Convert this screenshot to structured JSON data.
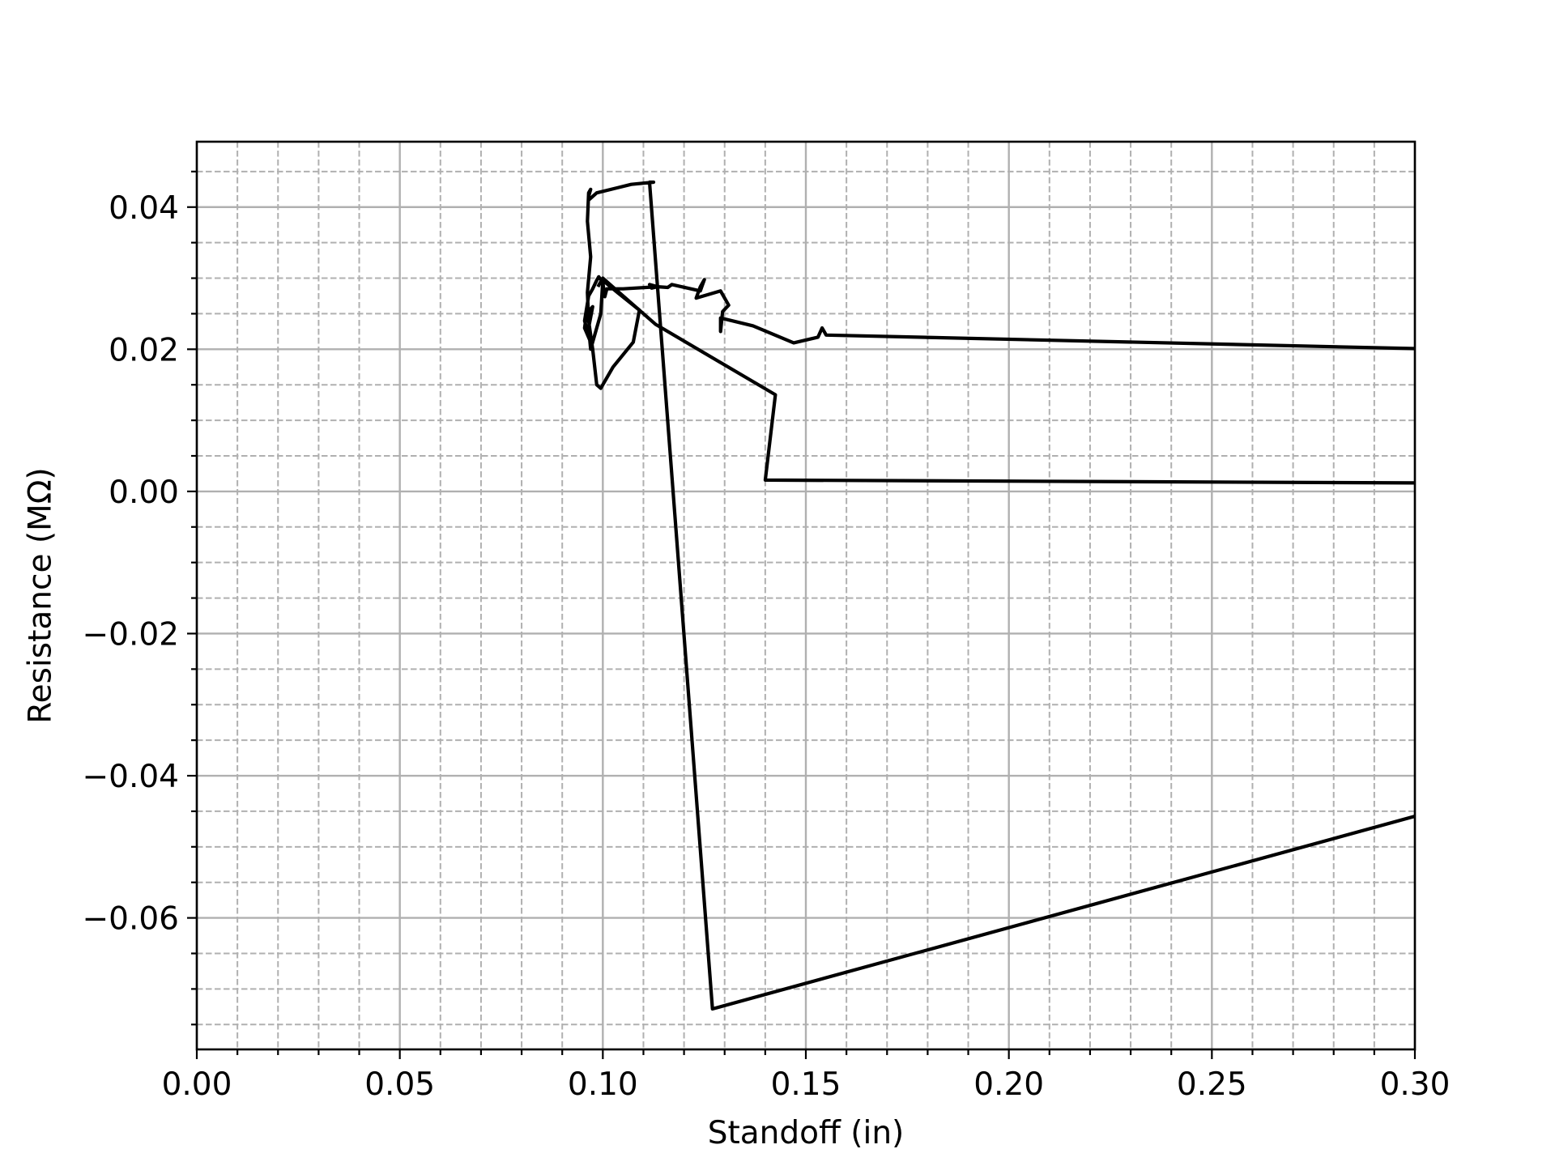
{
  "chart_data": {
    "type": "line",
    "title": "",
    "xlabel": "Standoff (in)",
    "ylabel": "Resistance (MΩ)",
    "xlim": [
      0.0,
      0.3
    ],
    "ylim": [
      -0.0785,
      0.0492
    ],
    "grid": "major solid, minor dashed",
    "x_major_ticks": [
      0.0,
      0.05,
      0.1,
      0.15,
      0.2,
      0.25,
      0.3
    ],
    "x_tick_labels": [
      "0.00",
      "0.05",
      "0.10",
      "0.15",
      "0.20",
      "0.25",
      "0.30"
    ],
    "x_minor_ticks": [
      0.01,
      0.02,
      0.03,
      0.04,
      0.06,
      0.07,
      0.08,
      0.09,
      0.11,
      0.12,
      0.13,
      0.14,
      0.16,
      0.17,
      0.18,
      0.19,
      0.21,
      0.22,
      0.23,
      0.24,
      0.26,
      0.27,
      0.28,
      0.29
    ],
    "y_major_ticks": [
      0.04,
      0.02,
      0.0,
      -0.02,
      -0.04,
      -0.06
    ],
    "y_tick_labels": [
      "0.04",
      "0.02",
      "0.00",
      "−0.02",
      "−0.04",
      "−0.06"
    ],
    "y_minor_ticks": [
      0.045,
      0.035,
      0.03,
      0.025,
      0.015,
      0.01,
      0.005,
      -0.005,
      -0.01,
      -0.015,
      -0.025,
      -0.03,
      -0.035,
      -0.045,
      -0.05,
      -0.055,
      -0.065,
      -0.07,
      -0.075
    ],
    "series": [
      {
        "color": "#000000",
        "x": [
          0.3,
          0.155,
          0.154,
          0.153,
          0.147,
          0.137,
          0.129,
          0.129,
          0.1295,
          0.131,
          0.129,
          0.123,
          0.124,
          0.125,
          0.124,
          0.117,
          0.116,
          0.1135,
          0.112,
          0.1115,
          0.1135,
          0.105,
          0.101,
          0.1005,
          0.1,
          0.099,
          0.0985,
          0.0975,
          0.0965,
          0.0955,
          0.097,
          0.0955,
          0.096,
          0.0975,
          0.0965,
          0.097,
          0.0995,
          0.1,
          0.104,
          0.109,
          0.1075,
          0.1025,
          0.1,
          0.0995,
          0.0985,
          0.0975,
          0.0965,
          0.0962,
          0.097,
          0.0962,
          0.0965,
          0.097,
          0.0965,
          0.0965,
          0.0985,
          0.107,
          0.1125,
          0.1115,
          0.127,
          0.3
        ],
        "y": [
          0.0201,
          0.022,
          0.023,
          0.0217,
          0.0209,
          0.0233,
          0.0244,
          0.0225,
          0.0253,
          0.0262,
          0.0282,
          0.0272,
          0.0288,
          0.0298,
          0.0282,
          0.0291,
          0.0287,
          0.0288,
          0.0286,
          0.0291,
          0.0288,
          0.0285,
          0.0285,
          0.0274,
          0.0294,
          0.0302,
          0.0297,
          0.0285,
          0.0275,
          0.024,
          0.021,
          0.023,
          0.025,
          0.026,
          0.023,
          0.02,
          0.025,
          0.0297,
          0.0278,
          0.0255,
          0.021,
          0.0175,
          0.015,
          0.0145,
          0.015,
          0.02,
          0.024,
          0.028,
          0.033,
          0.038,
          0.042,
          0.0425,
          0.0415,
          0.041,
          0.042,
          0.0432,
          0.0435,
          0.0435,
          -0.0728,
          -0.0457
        ]
      },
      {
        "color": "#000000",
        "x": [
          0.3,
          0.14,
          0.1425,
          0.113,
          0.1,
          0.099
        ],
        "y": [
          0.0012,
          0.0016,
          0.0136,
          0.0235,
          0.03,
          0.029
        ]
      }
    ]
  }
}
